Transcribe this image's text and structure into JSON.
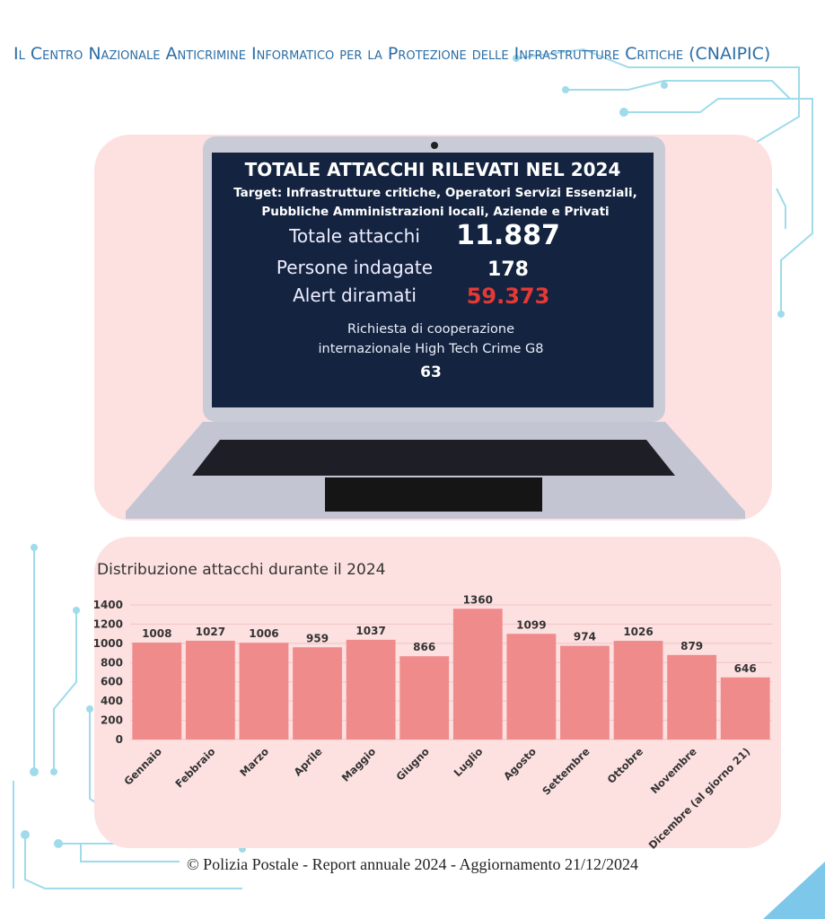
{
  "header": {
    "title": "Il Centro Nazionale Anticrimine Informatico per la Protezione delle Infrastrutture Critiche (CNAIPIC)"
  },
  "laptop": {
    "title": "TOTALE ATTACCHI RILEVATI NEL 2024",
    "subtitle": "Target: Infrastrutture critiche, Operatori Servizi Essenziali, Pubbliche Amministrazioni locali, Aziende e Privati",
    "stats": [
      {
        "label": "Totale attacchi",
        "value": "11.887"
      },
      {
        "label": "Persone indagate",
        "value": "178"
      },
      {
        "label": "Alert diramati",
        "value": "59.373"
      }
    ],
    "cooperation": {
      "label": "Richiesta di cooperazione internazionale High Tech Crime G8",
      "value": "63"
    }
  },
  "chart_data": {
    "type": "bar",
    "title": "Distribuzione attacchi durante il 2024",
    "categories": [
      "Gennaio",
      "Febbraio",
      "Marzo",
      "Aprile",
      "Maggio",
      "Giugno",
      "Luglio",
      "Agosto",
      "Settembre",
      "Ottobre",
      "Novembre",
      "Dicembre (al giorno 21)"
    ],
    "values": [
      1008,
      1027,
      1006,
      959,
      1037,
      866,
      1360,
      1099,
      974,
      1026,
      879,
      646
    ],
    "color": "#ef8b8b",
    "ylim": [
      0,
      1400
    ],
    "yticks": [
      0,
      200,
      400,
      600,
      800,
      1000,
      1200,
      1400
    ],
    "grid": true
  },
  "footer": "© Polizia Postale - Report annuale 2024 - Aggiornamento 21/12/2024"
}
